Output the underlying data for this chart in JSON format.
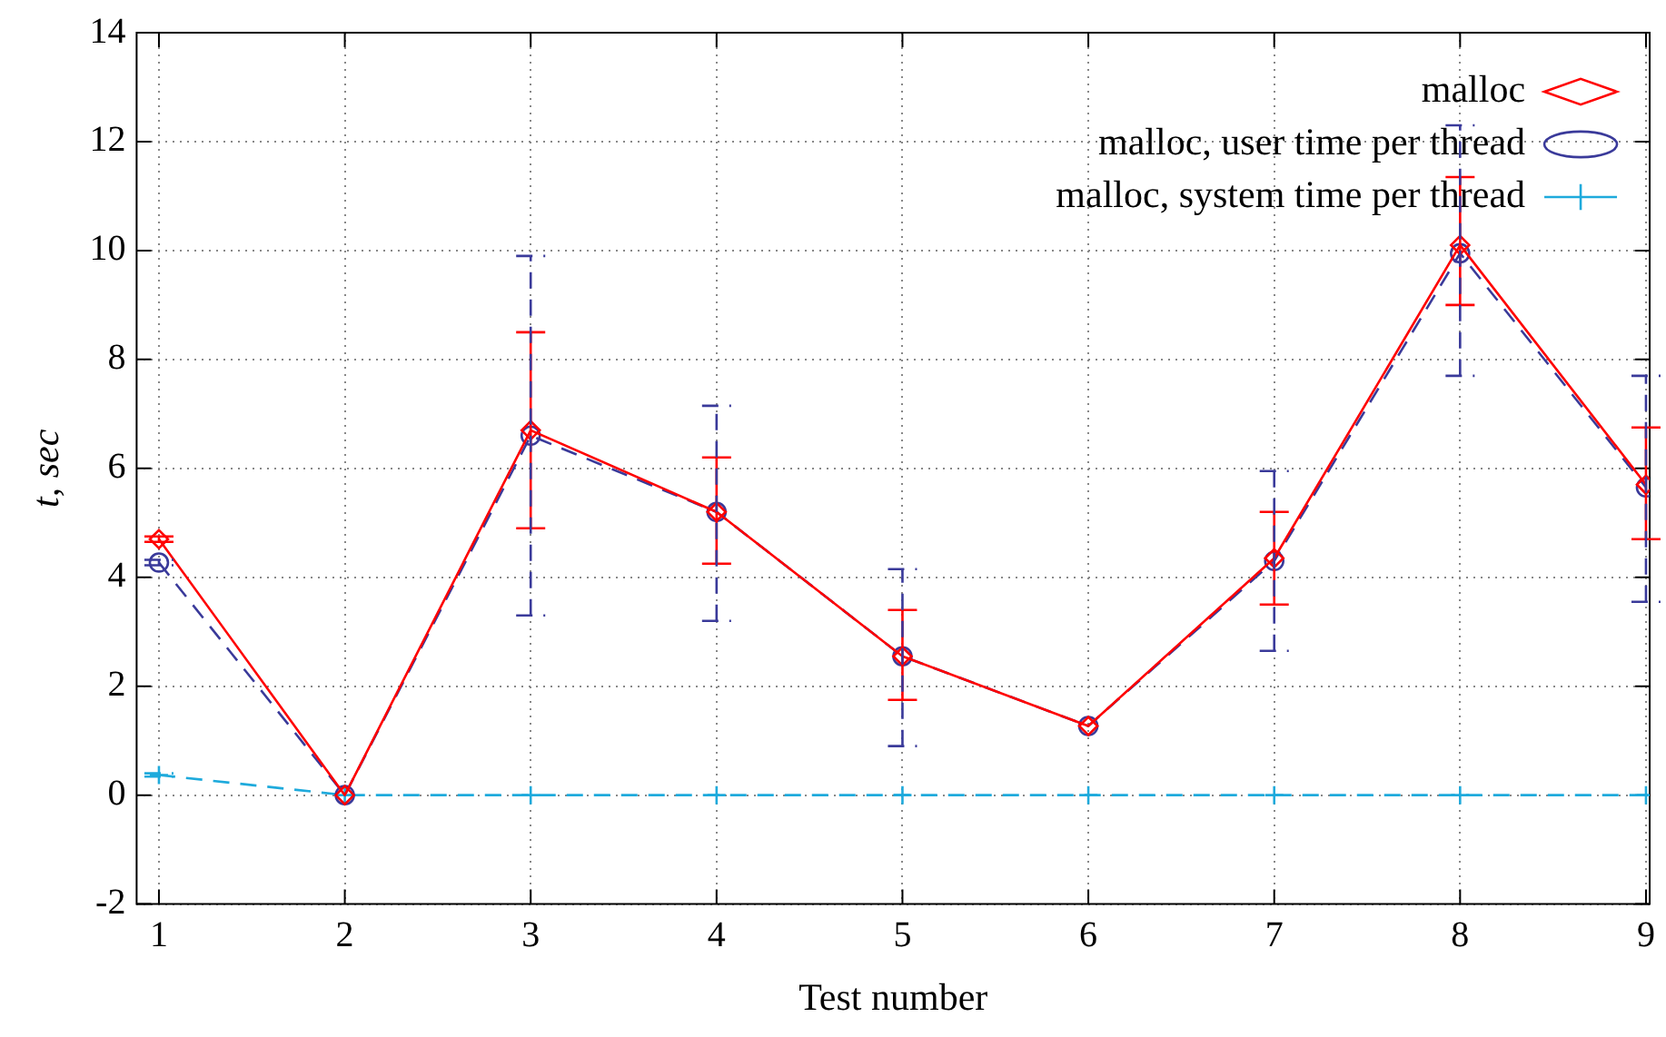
{
  "chart_data": {
    "type": "line",
    "xlabel": "Test number",
    "ylabel": "t, sec",
    "x": [
      1,
      2,
      3,
      4,
      5,
      6,
      7,
      8,
      9
    ],
    "xlim": [
      0.88,
      9.02
    ],
    "xticks": [
      1,
      2,
      3,
      4,
      5,
      6,
      7,
      8,
      9
    ],
    "ylim": [
      -2,
      14
    ],
    "yticks": [
      -2,
      0,
      2,
      4,
      6,
      8,
      10,
      12,
      14
    ],
    "grid": true,
    "legend": "top right",
    "series": [
      {
        "name": "malloc",
        "color": "#ff0000",
        "marker": "diamond",
        "line_style": "solid",
        "values": [
          4.7,
          0,
          6.7,
          5.2,
          2.55,
          1.27,
          4.35,
          10.1,
          5.7
        ],
        "errors": [
          0.05,
          null,
          [
            4.9,
            8.5
          ],
          [
            4.25,
            6.2
          ],
          [
            1.75,
            3.4
          ],
          null,
          [
            3.5,
            5.2
          ],
          [
            9.0,
            11.35
          ],
          [
            4.7,
            6.75
          ]
        ]
      },
      {
        "name": "malloc, user time per thread",
        "color": "#3a3a9a",
        "marker": "circle",
        "line_style": "dashed",
        "values": [
          4.27,
          0,
          6.6,
          5.2,
          2.55,
          1.27,
          4.3,
          9.95,
          5.65
        ],
        "errors": [
          0.05,
          null,
          [
            3.3,
            9.9
          ],
          [
            3.2,
            7.15
          ],
          [
            0.9,
            4.15
          ],
          null,
          [
            2.65,
            5.95
          ],
          [
            7.7,
            12.3
          ],
          [
            3.55,
            7.7
          ]
        ]
      },
      {
        "name": "malloc, system time per thread",
        "color": "#1eaadc",
        "marker": "cross",
        "line_style": "dashed",
        "values": [
          0.37,
          0,
          0,
          0,
          0,
          0,
          0,
          0,
          0
        ],
        "errors": [
          0.03,
          null,
          null,
          null,
          null,
          null,
          null,
          null,
          null
        ]
      }
    ]
  }
}
